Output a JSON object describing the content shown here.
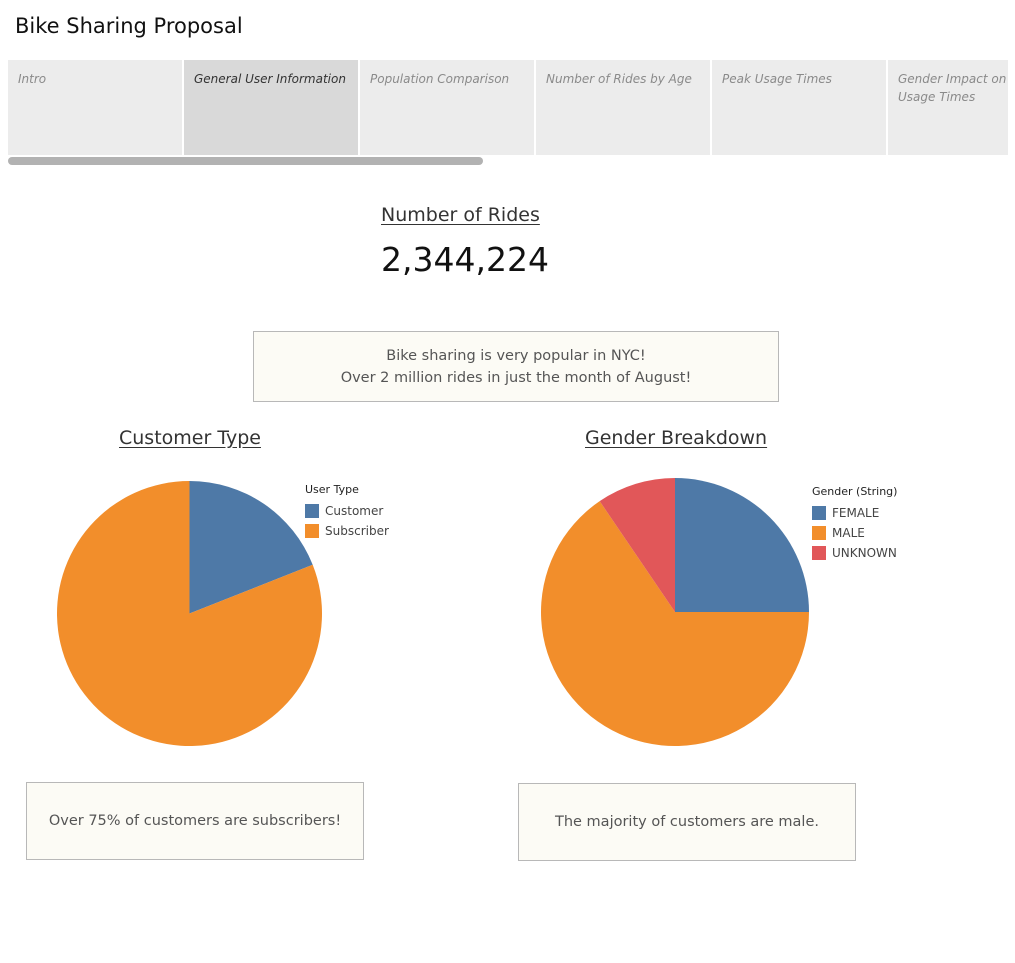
{
  "dashboard": {
    "title": "Bike Sharing Proposal"
  },
  "tabs": [
    {
      "label": "Intro",
      "active": false
    },
    {
      "label": "General User Information",
      "active": true
    },
    {
      "label": "Population Comparison",
      "active": false
    },
    {
      "label": "Number of Rides by Age",
      "active": false
    },
    {
      "label": "Peak Usage Times",
      "active": false
    },
    {
      "label": "Gender Impact on Peak Usage Times",
      "active": false
    }
  ],
  "kpi": {
    "label": "Number of Rides",
    "value": "2,344,224"
  },
  "intro_note": {
    "line1": "Bike sharing is very popular in NYC!",
    "line2": "Over 2 million rides in just the month of August!"
  },
  "customer_note": "Over 75% of customers are subscribers!",
  "gender_note": "The majority of customers are male.",
  "chart_data": [
    {
      "type": "pie",
      "title": "Customer Type",
      "legend_title": "User Type",
      "categories": [
        "Customer",
        "Subscriber"
      ],
      "values": [
        19,
        81
      ],
      "colors": [
        "#4e79a7",
        "#f28e2b"
      ]
    },
    {
      "type": "pie",
      "title": "Gender Breakdown",
      "legend_title": "Gender (String)",
      "categories": [
        "FEMALE",
        "MALE",
        "UNKNOWN"
      ],
      "values": [
        25,
        65.5,
        9.5
      ],
      "colors": [
        "#4e79a7",
        "#f28e2b",
        "#e15759"
      ]
    }
  ]
}
